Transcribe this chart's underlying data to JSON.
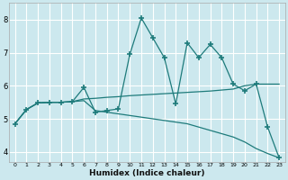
{
  "xlabel": "Humidex (Indice chaleur)",
  "bg_color": "#cce8ee",
  "grid_color": "#ffffff",
  "line_color": "#1e7b7b",
  "xlim": [
    -0.5,
    23.5
  ],
  "ylim": [
    3.7,
    8.5
  ],
  "yticks": [
    4,
    5,
    6,
    7,
    8
  ],
  "xticks": [
    0,
    1,
    2,
    3,
    4,
    5,
    6,
    7,
    8,
    9,
    10,
    11,
    12,
    13,
    14,
    15,
    16,
    17,
    18,
    19,
    20,
    21,
    22,
    23
  ],
  "series_flat": {
    "x": [
      0,
      1,
      2,
      3,
      4,
      5,
      6,
      7,
      8,
      9,
      10,
      11,
      12,
      13,
      14,
      15,
      16,
      17,
      18,
      19,
      20,
      21,
      22,
      23
    ],
    "y": [
      4.85,
      5.28,
      5.48,
      5.5,
      5.5,
      5.52,
      5.6,
      5.62,
      5.65,
      5.67,
      5.7,
      5.72,
      5.74,
      5.76,
      5.78,
      5.8,
      5.82,
      5.84,
      5.87,
      5.9,
      6.0,
      6.05,
      6.05,
      6.05
    ]
  },
  "series_decline": {
    "x": [
      0,
      1,
      2,
      3,
      4,
      5,
      6,
      7,
      8,
      9,
      10,
      11,
      12,
      13,
      14,
      15,
      16,
      17,
      18,
      19,
      20,
      21,
      22,
      23
    ],
    "y": [
      4.85,
      5.28,
      5.48,
      5.5,
      5.5,
      5.52,
      5.55,
      5.25,
      5.2,
      5.15,
      5.1,
      5.05,
      5.0,
      4.95,
      4.9,
      4.85,
      4.75,
      4.65,
      4.55,
      4.45,
      4.3,
      4.1,
      3.95,
      3.82
    ]
  },
  "series_spike": {
    "x": [
      0,
      1,
      2,
      3,
      4,
      5,
      6,
      7,
      8,
      9,
      10,
      11,
      12,
      13,
      14,
      15,
      16,
      17,
      18,
      19,
      20,
      21,
      22,
      23
    ],
    "y": [
      4.85,
      5.28,
      5.48,
      5.5,
      5.5,
      5.52,
      5.95,
      5.2,
      5.25,
      5.3,
      6.95,
      8.05,
      7.45,
      6.85,
      5.45,
      7.3,
      6.85,
      7.25,
      6.85,
      6.05,
      5.85,
      6.05,
      4.75,
      3.82
    ]
  }
}
